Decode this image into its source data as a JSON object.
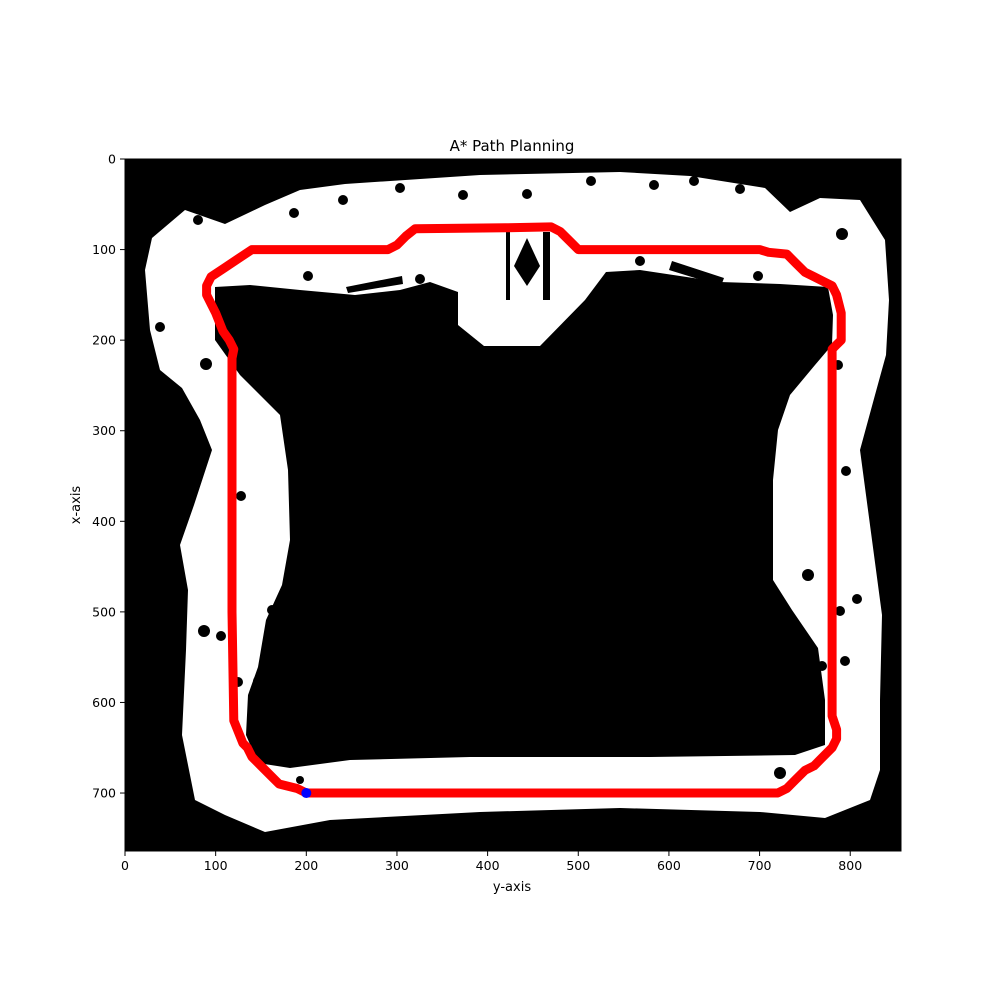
{
  "chart_data": {
    "type": "line",
    "title": "A* Path Planning",
    "xlabel": "y-axis",
    "ylabel": "x-axis",
    "xlim": [
      0,
      856
    ],
    "ylim": [
      764,
      0
    ],
    "x_ticks": [
      0,
      100,
      200,
      300,
      400,
      500,
      600,
      700,
      800
    ],
    "y_ticks": [
      0,
      100,
      200,
      300,
      400,
      500,
      600,
      700
    ],
    "grid": false,
    "background": "occupancy-map",
    "colors": {
      "path": "#ff0000",
      "start": "#0000ff",
      "free": "#ffffff",
      "occupied": "#000000"
    },
    "path": {
      "x": [
        200,
        190,
        170,
        160,
        150,
        140,
        135,
        130,
        120,
        118,
        118,
        118,
        120,
        115,
        108,
        100,
        95,
        90,
        90,
        95,
        110,
        125,
        140,
        290,
        300,
        310,
        320,
        420,
        470,
        480,
        490,
        500,
        700,
        710,
        730,
        740,
        750,
        760,
        770,
        780,
        785,
        790,
        790,
        785,
        780,
        780,
        780,
        780,
        785,
        785,
        780,
        770,
        760,
        750,
        740,
        730,
        720,
        200
      ],
      "y": [
        700,
        695,
        690,
        680,
        670,
        660,
        650,
        645,
        620,
        500,
        300,
        220,
        210,
        200,
        190,
        170,
        160,
        150,
        140,
        130,
        120,
        110,
        100,
        100,
        95,
        85,
        77,
        76,
        75,
        80,
        90,
        100,
        100,
        103,
        105,
        115,
        125,
        130,
        135,
        140,
        150,
        170,
        200,
        205,
        210,
        400,
        550,
        615,
        630,
        640,
        650,
        660,
        670,
        675,
        685,
        695,
        700,
        700
      ]
    },
    "start": {
      "x": 200,
      "y": 700
    }
  }
}
